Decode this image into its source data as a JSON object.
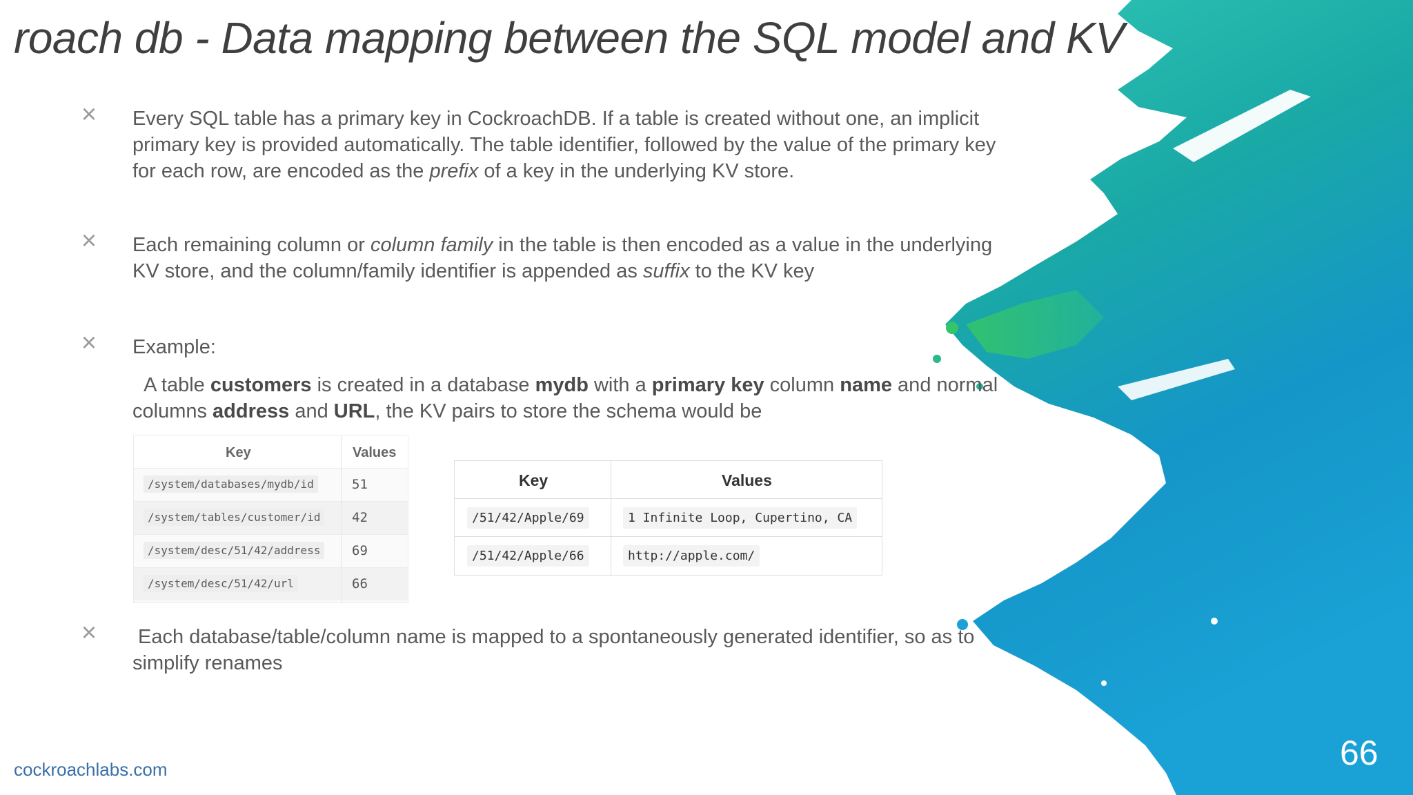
{
  "slide": {
    "title": "roach db - Data mapping between the SQL model and KV",
    "page_number": "66",
    "footer_link": "cockroachlabs.com",
    "bullet_icon": "close-x-icon",
    "accent_colors": [
      "#1e9bd7",
      "#19b7b0",
      "#2ecc71"
    ]
  },
  "bullets": {
    "b1": {
      "pre": "Every SQL table has a primary key in CockroachDB. If a table is created without one, an implicit primary key is provided automatically. The table identifier, followed by the value of the primary key for each row, are encoded as the ",
      "em": "prefix",
      "post": " of a key in the underlying KV store."
    },
    "b2": {
      "pre": "Each remaining column or ",
      "em1": "column family",
      "mid": " in the table is then encoded as a value in the underlying KV store, and the column/family identifier is appended as ",
      "em2": "suffix",
      "post": " to the KV key"
    },
    "b3": {
      "label": "Example:",
      "s1": "  A table ",
      "b1": "customers",
      "s2": " is created in a database ",
      "b2": "mydb",
      "s3": " with a ",
      "b3": "primary key",
      "s4": " column ",
      "b4": "name",
      "s5": " and normal columns ",
      "b5": "address",
      "s6": " and ",
      "b6": "URL",
      "s7": ", the KV pairs to store the schema would be"
    },
    "b4": {
      "text": " Each database/table/column name is mapped to a spontaneously generated identifier, so as to simplify renames"
    }
  },
  "schema_table": {
    "headers": [
      "Key",
      "Values"
    ],
    "rows": [
      {
        "key": "/system/databases/mydb/id",
        "value": "51"
      },
      {
        "key": "/system/tables/customer/id",
        "value": "42"
      },
      {
        "key": "/system/desc/51/42/address",
        "value": "69"
      },
      {
        "key": "/system/desc/51/42/url",
        "value": "66"
      }
    ]
  },
  "data_table": {
    "headers": [
      "Key",
      "Values"
    ],
    "rows": [
      {
        "key": "/51/42/Apple/69",
        "value": "1 Infinite Loop, Cupertino, CA"
      },
      {
        "key": "/51/42/Apple/66",
        "value": "http://apple.com/"
      }
    ]
  }
}
